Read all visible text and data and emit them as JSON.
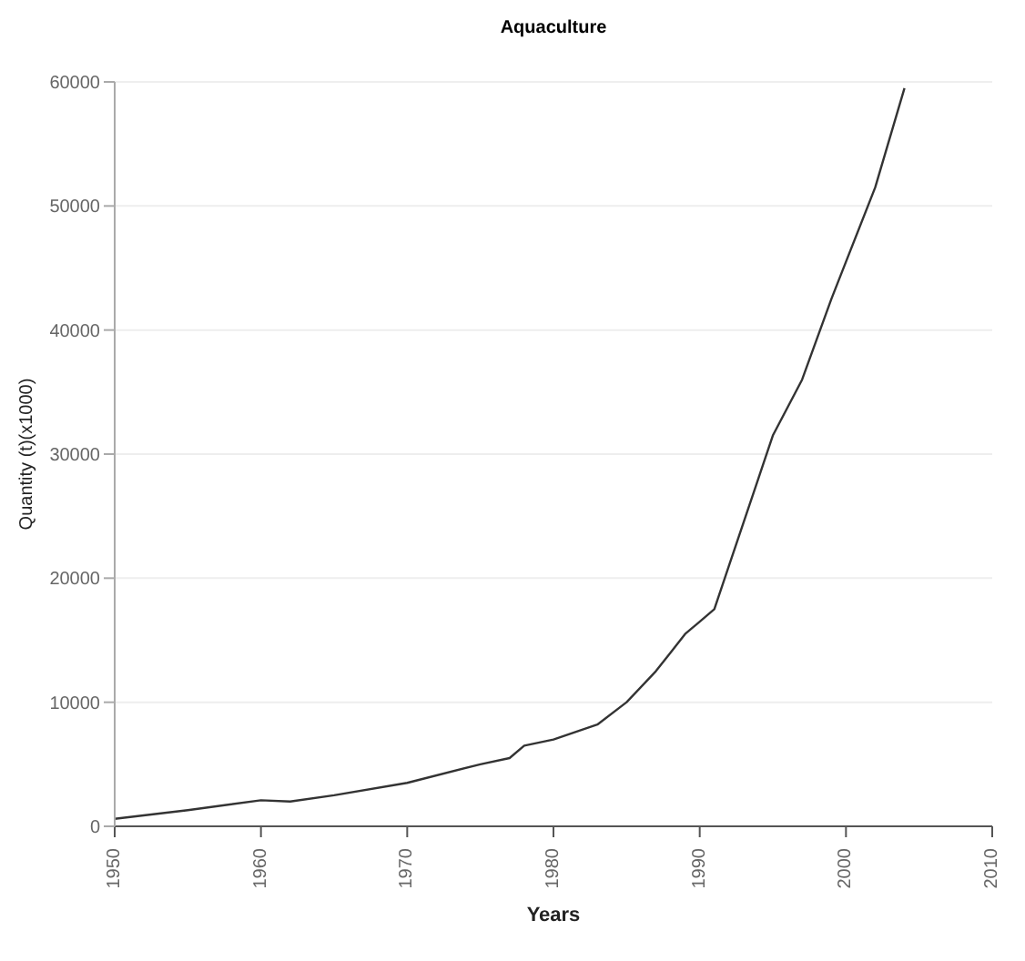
{
  "chart_data": {
    "type": "line",
    "title": "Aquaculture",
    "xlabel": "Years",
    "ylabel": "Quantity (t)(x1000)",
    "x": [
      1950,
      1955,
      1960,
      1962,
      1965,
      1970,
      1975,
      1977,
      1978,
      1980,
      1983,
      1985,
      1987,
      1988,
      1989,
      1990,
      1991,
      1992,
      1994,
      1995,
      1997,
      1999,
      2000,
      2002,
      2004
    ],
    "series": [
      {
        "color": "#333333",
        "values": [
          600,
          1300,
          2100,
          2000,
          2500,
          3500,
          5000,
          5500,
          6500,
          7000,
          8200,
          10000,
          12500,
          14000,
          15500,
          16500,
          17500,
          21000,
          28000,
          31500,
          36000,
          42500,
          45500,
          51500,
          59500
        ]
      }
    ],
    "xlim": [
      1950,
      2010
    ],
    "xticks": [
      1950,
      1960,
      1970,
      1980,
      1990,
      2000,
      2010
    ],
    "ylim": [
      0,
      60000
    ],
    "yticks": [
      0,
      10000,
      20000,
      30000,
      40000,
      50000,
      60000
    ],
    "grid": "y",
    "marker": "none",
    "line_style": "solid"
  }
}
